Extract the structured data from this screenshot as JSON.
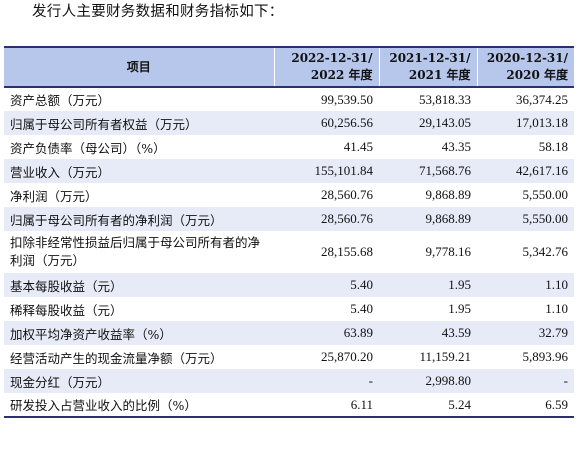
{
  "intro_text": "发行人主要财务数据和财务指标如下：",
  "table": {
    "headers": {
      "item": "项目",
      "periods": [
        {
          "line1": "2022-12-31/",
          "line2": "2022 年度"
        },
        {
          "line1": "2021-12-31/",
          "line2": "2021 年度"
        },
        {
          "line1": "2020-12-31/",
          "line2": "2020 年度"
        }
      ]
    },
    "rows": [
      {
        "label": "资产总额（万元）",
        "values": [
          "99,539.50",
          "53,818.33",
          "36,374.25"
        ]
      },
      {
        "label": "归属于母公司所有者权益（万元）",
        "values": [
          "60,256.56",
          "29,143.05",
          "17,013.18"
        ]
      },
      {
        "label": "资产负债率（母公司）（%）",
        "values": [
          "41.45",
          "43.35",
          "58.18"
        ]
      },
      {
        "label": "营业收入（万元）",
        "values": [
          "155,101.84",
          "71,568.76",
          "42,617.16"
        ]
      },
      {
        "label": "净利润（万元）",
        "values": [
          "28,560.76",
          "9,868.89",
          "5,550.00"
        ]
      },
      {
        "label": "归属于母公司所有者的净利润（万元）",
        "values": [
          "28,560.76",
          "9,868.89",
          "5,550.00"
        ]
      },
      {
        "label": "扣除非经常性损益后归属于母公司所有者的净利润（万元）",
        "values": [
          "28,155.68",
          "9,778.16",
          "5,342.76"
        ]
      },
      {
        "label": "基本每股收益（元）",
        "values": [
          "5.40",
          "1.95",
          "1.10"
        ]
      },
      {
        "label": "稀释每股收益（元）",
        "values": [
          "5.40",
          "1.95",
          "1.10"
        ]
      },
      {
        "label": "加权平均净资产收益率（%）",
        "values": [
          "63.89",
          "43.59",
          "32.79"
        ]
      },
      {
        "label": "经营活动产生的现金流量净额（万元）",
        "values": [
          "25,870.20",
          "11,159.21",
          "5,893.96"
        ]
      },
      {
        "label": "现金分红（万元）",
        "values": [
          "-",
          "2,998.80",
          "-"
        ]
      },
      {
        "label": "研发投入占营业收入的比例（%）",
        "values": [
          "6.11",
          "5.24",
          "6.59"
        ]
      }
    ]
  }
}
